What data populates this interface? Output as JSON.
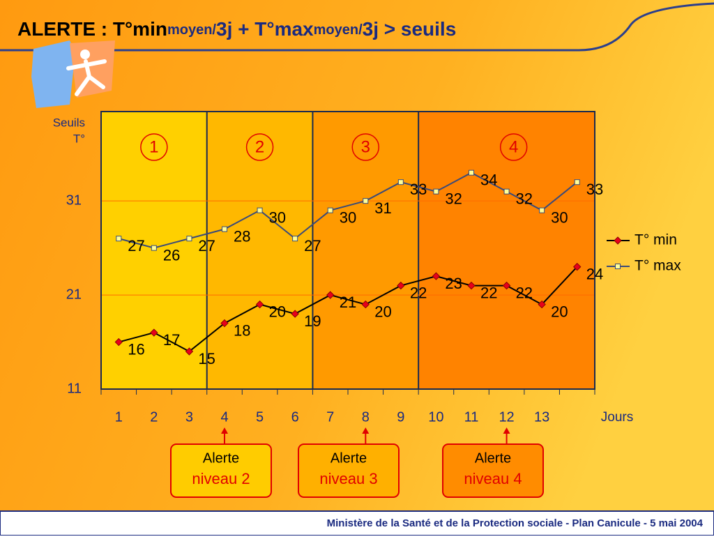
{
  "chart_data": {
    "type": "line",
    "title_parts": [
      "ALERTE : T°min",
      "moyen/",
      "3j + T°max",
      "moyen/",
      "3j > seuils"
    ],
    "y_label": [
      "Seuils",
      "T°"
    ],
    "x_label": "Jours",
    "categories": [
      "1",
      "2",
      "3",
      "4",
      "5",
      "6",
      "7",
      "8",
      "9",
      "10",
      "11",
      "12",
      "13",
      null
    ],
    "series": [
      {
        "name": "T° min",
        "color": "#000000",
        "marker_color": "#e8001c",
        "marker": "diamond",
        "values": [
          16,
          17,
          15,
          18,
          20,
          19,
          21,
          20,
          22,
          23,
          22,
          22,
          20,
          24
        ]
      },
      {
        "name": "T° max",
        "color": "#3a4a7a",
        "marker_color": "#ffff99",
        "marker": "square",
        "values": [
          27,
          26,
          27,
          28,
          30,
          27,
          30,
          31,
          33,
          32,
          34,
          32,
          30,
          33
        ]
      }
    ],
    "ylim": [
      11,
      40.5
    ],
    "yticks": [
      11,
      21,
      31
    ],
    "grid": true,
    "zones": [
      {
        "label": "1",
        "color": "#ffd000"
      },
      {
        "label": "2",
        "color": "#ffb800"
      },
      {
        "label": "3",
        "color": "#ff9a00"
      },
      {
        "label": "4",
        "color": "#ff8300"
      }
    ],
    "alerts": [
      {
        "line1": "Alerte",
        "line2": "niveau 2",
        "color": "#ffcc00"
      },
      {
        "line1": "Alerte",
        "line2": "niveau 3",
        "color": "#ffb000"
      },
      {
        "line1": "Alerte",
        "line2": "niveau 4",
        "color": "#ff8c00"
      }
    ]
  },
  "footer": "Ministère de la Santé et de la Protection sociale - Plan Canicule - 5 mai 2004"
}
